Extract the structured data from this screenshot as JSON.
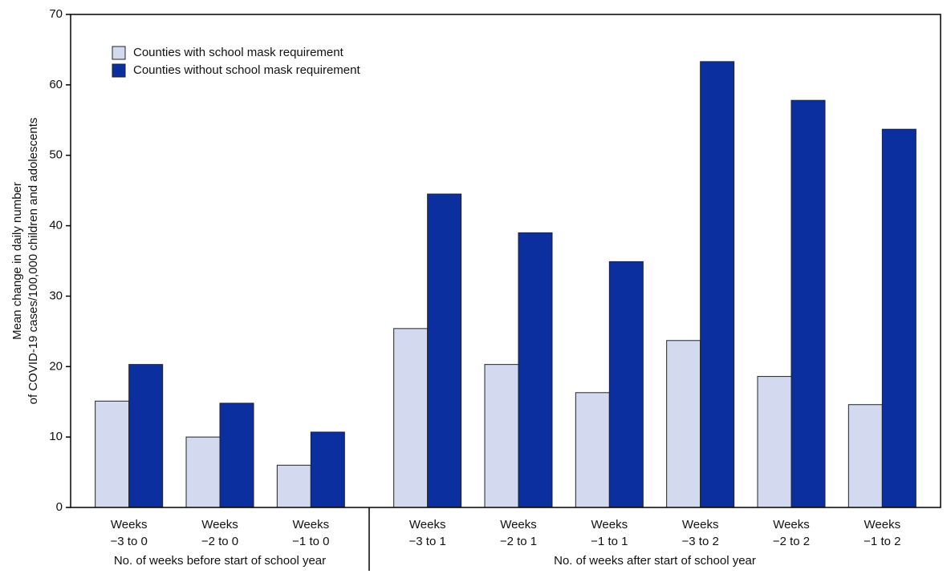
{
  "chart_data": {
    "type": "bar",
    "ylabel": [
      "Mean change in daily number",
      "of COVID-19 cases/100,000 children and adolescents"
    ],
    "categories": [
      [
        "Weeks",
        "−3 to 0"
      ],
      [
        "Weeks",
        "−2 to 0"
      ],
      [
        "Weeks",
        "−1 to 0"
      ],
      null,
      [
        "Weeks",
        "−3 to 1"
      ],
      [
        "Weeks",
        "−2 to 1"
      ],
      [
        "Weeks",
        "−1 to 1"
      ],
      [
        "Weeks",
        "−3 to 2"
      ],
      [
        "Weeks",
        "−2 to 2"
      ],
      [
        "Weeks",
        "−1 to 2"
      ]
    ],
    "x_group_labels": [
      "No. of weeks before start of school year",
      "No. of weeks after start of school year"
    ],
    "series": [
      {
        "name": "Counties with school mask requirement",
        "color": "#d3daf0",
        "values": [
          15.1,
          10.0,
          6.0,
          null,
          25.4,
          20.3,
          16.3,
          23.7,
          18.6,
          14.6
        ]
      },
      {
        "name": "Counties without school mask requirement",
        "color": "#0b2f9f",
        "values": [
          20.3,
          14.8,
          10.7,
          null,
          44.5,
          39.0,
          34.9,
          63.3,
          57.8,
          53.7
        ]
      }
    ],
    "ylim": [
      0,
      70
    ],
    "yticks": [
      0,
      10,
      20,
      30,
      40,
      50,
      60,
      70
    ],
    "legend": "upper left"
  }
}
